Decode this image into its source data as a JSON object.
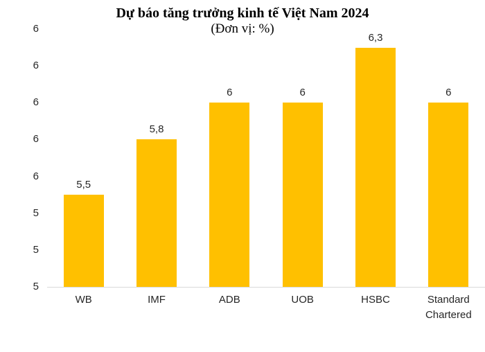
{
  "chart_data": {
    "type": "bar",
    "title": "Dự báo tăng trưởng kinh tế Việt Nam 2024",
    "subtitle": "(Đơn vị: %)",
    "categories": [
      "WB",
      "IMF",
      "ADB",
      "UOB",
      "HSBC",
      "Standard Chartered"
    ],
    "values": [
      5.5,
      5.8,
      6,
      6,
      6.3,
      6
    ],
    "value_labels": [
      "5,5",
      "5,8",
      "6",
      "6",
      "6,3",
      "6"
    ],
    "xlabel": "",
    "ylabel": "",
    "ylim": [
      5.0,
      6.4
    ],
    "ytick_step": 0.2,
    "ytick_labels_bottom_to_top": [
      "5",
      "5",
      "5",
      "6",
      "6",
      "6",
      "6",
      "6"
    ],
    "grid": false,
    "legend": false,
    "bar_color": "#FFC000",
    "axis_line_color": "#D9D9D9",
    "text_color": "#262626",
    "title_color": "#000000"
  }
}
